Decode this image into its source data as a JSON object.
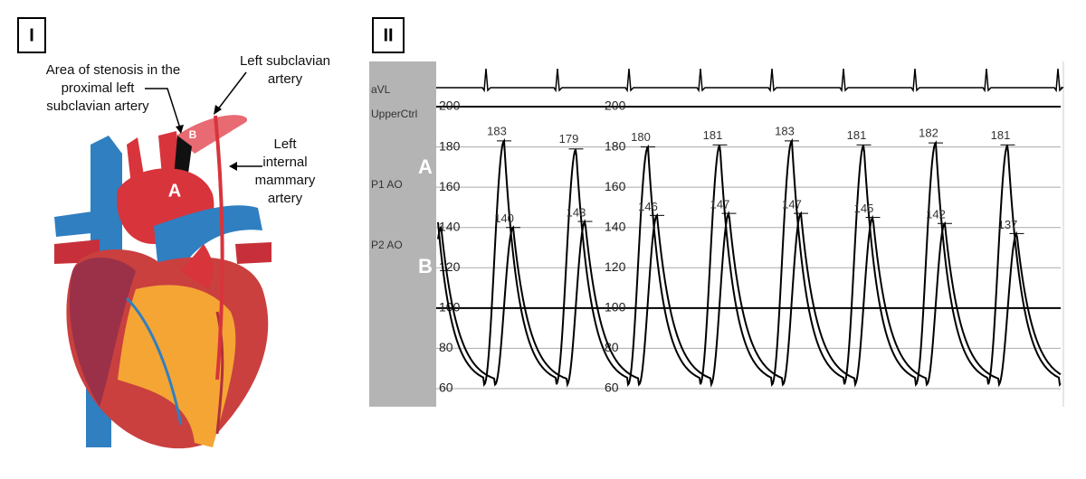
{
  "panel_1": {
    "label": "I",
    "annotations": {
      "stenosis": [
        "Area of stenosis in the",
        "proximal left",
        "subclavian artery"
      ],
      "subclavian": [
        "Left subclavian",
        "artery"
      ],
      "lima": [
        "Left",
        "internal",
        "mammary",
        "artery"
      ]
    },
    "markers": {
      "a": "A",
      "b": "B"
    }
  },
  "panel_2": {
    "label": "II",
    "channels": [
      "aVL",
      "UpperCtrl",
      "P1 AO",
      "P2 AO"
    ],
    "markers": {
      "a": "A",
      "b": "B"
    },
    "ylim": [
      60,
      200
    ],
    "yticks": [
      60,
      80,
      100,
      120,
      140,
      160,
      180,
      200
    ],
    "p1_peaks": [
      183,
      179,
      180,
      181,
      183,
      181,
      182,
      181
    ],
    "p2_peaks": [
      140,
      143,
      146,
      147,
      147,
      145,
      142,
      137
    ]
  }
}
